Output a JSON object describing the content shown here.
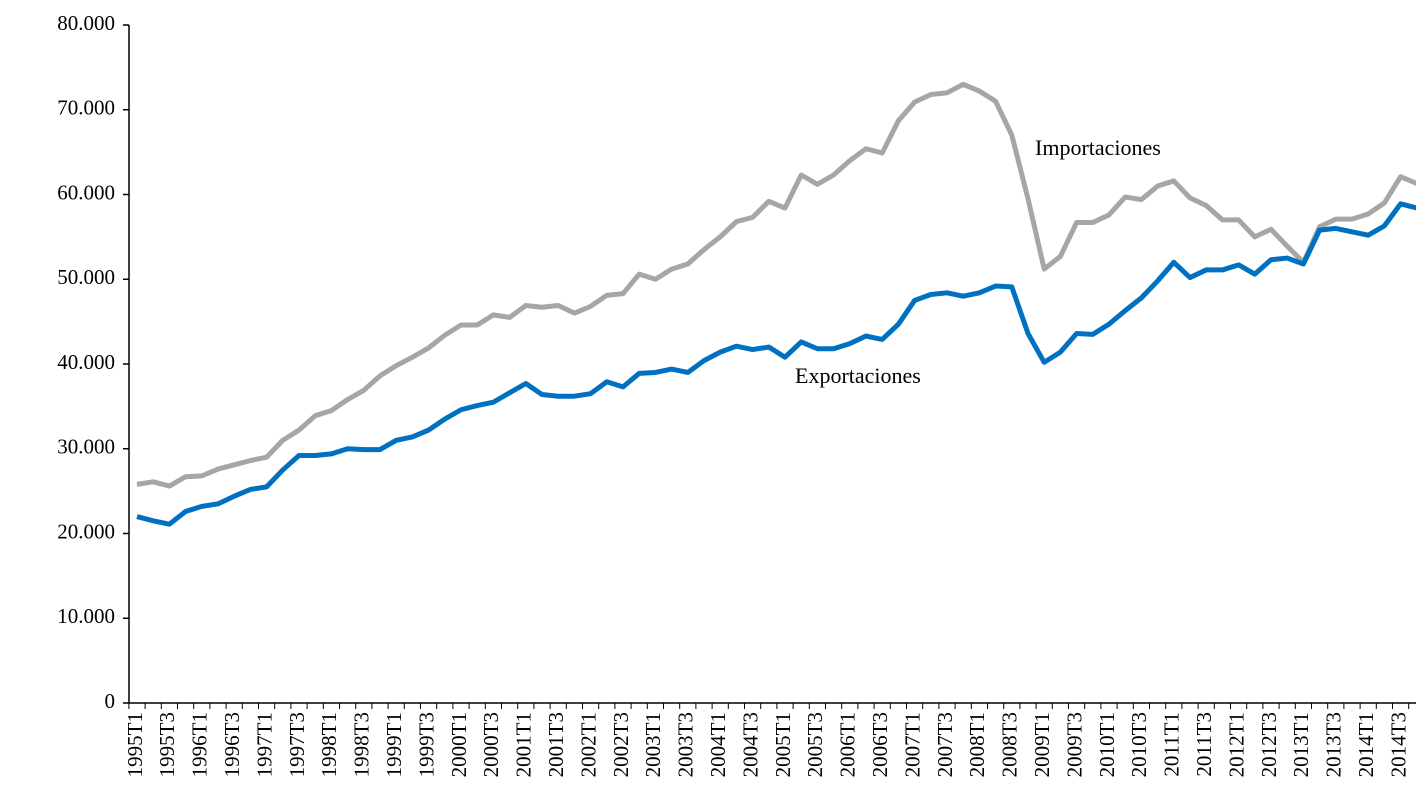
{
  "chart_data": {
    "type": "line",
    "categories": [
      "1995T1",
      null,
      "1995T3",
      null,
      "1996T1",
      null,
      "1996T3",
      null,
      "1997T1",
      null,
      "1997T3",
      null,
      "1998T1",
      null,
      "1998T3",
      null,
      "1999T1",
      null,
      "1999T3",
      null,
      "2000T1",
      null,
      "2000T3",
      null,
      "2001T1",
      null,
      "2001T3",
      null,
      "2002T1",
      null,
      "2002T3",
      null,
      "2003T1",
      null,
      "2003T3",
      null,
      "2004T1",
      null,
      "2004T3",
      null,
      "2005T1",
      null,
      "2005T3",
      null,
      "2006T1",
      null,
      "2006T3",
      null,
      "2007T1",
      null,
      "2007T3",
      null,
      "2008T1",
      null,
      "2008T3",
      null,
      "2009T1",
      null,
      "2009T3",
      null,
      "2010T1",
      null,
      "2010T3",
      null,
      "2011T1",
      null,
      "2011T3",
      null,
      "2012T1",
      null,
      "2012T3",
      null,
      "2013T1",
      null,
      "2013T3",
      null,
      "2014T1",
      null,
      "2014T3",
      null
    ],
    "series": [
      {
        "name": "Importaciones",
        "color": "#a6a6a6",
        "values": [
          25800,
          26100,
          25600,
          26700,
          26800,
          27600,
          28100,
          28600,
          29000,
          31000,
          32200,
          33900,
          34500,
          35800,
          36900,
          38600,
          39800,
          40800,
          41900,
          43400,
          44600,
          44600,
          45800,
          45500,
          46900,
          46700,
          46900,
          46000,
          46800,
          48100,
          48300,
          50600,
          50000,
          51200,
          51800,
          53500,
          55000,
          56800,
          57300,
          59200,
          58400,
          62300,
          61200,
          62300,
          64000,
          65400,
          64900,
          68700,
          70900,
          71800,
          72000,
          73000,
          72200,
          71000,
          67000,
          59500,
          51200,
          52700,
          56700,
          56700,
          57600,
          59700,
          59400,
          61000,
          61600,
          59600,
          58700,
          57000,
          57000,
          55000,
          55900,
          53900,
          52000,
          56200,
          57100,
          57100,
          57700,
          59000,
          62100,
          61300
        ]
      },
      {
        "name": "Exportaciones",
        "color": "#0070c0",
        "values": [
          22000,
          21500,
          21100,
          22600,
          23200,
          23500,
          24400,
          25200,
          25500,
          27500,
          29200,
          29200,
          29400,
          30000,
          29900,
          29900,
          31000,
          31400,
          32200,
          33500,
          34600,
          35100,
          35500,
          36600,
          37700,
          36400,
          36200,
          36200,
          36500,
          37900,
          37300,
          38900,
          39000,
          39400,
          39000,
          40400,
          41400,
          42100,
          41700,
          42000,
          40800,
          42600,
          41800,
          41800,
          42400,
          43300,
          42900,
          44700,
          47500,
          48200,
          48400,
          48000,
          48400,
          49200,
          49100,
          43600,
          40200,
          41400,
          43600,
          43500,
          44700,
          46300,
          47800,
          49800,
          52000,
          50200,
          51100,
          51100,
          51700,
          50600,
          52300,
          52500,
          51800,
          55800,
          56000,
          55600,
          55200,
          56300,
          58900,
          58400
        ]
      }
    ],
    "annotations": [
      "Importaciones",
      "Exportaciones"
    ],
    "ylim": [
      0,
      80000
    ],
    "yticks": [
      0,
      {
        "value": 10000,
        "label": "10.000"
      },
      {
        "value": 20000,
        "label": "20.000"
      },
      {
        "value": 30000,
        "label": "30.000"
      },
      {
        "value": 40000,
        "label": "40.000"
      },
      {
        "value": 50000,
        "label": "50.000"
      },
      {
        "value": 60000,
        "label": "60.000"
      },
      {
        "value": 70000,
        "label": "70.000"
      },
      {
        "value": 80000,
        "label": "80.000"
      }
    ],
    "grid": false
  }
}
